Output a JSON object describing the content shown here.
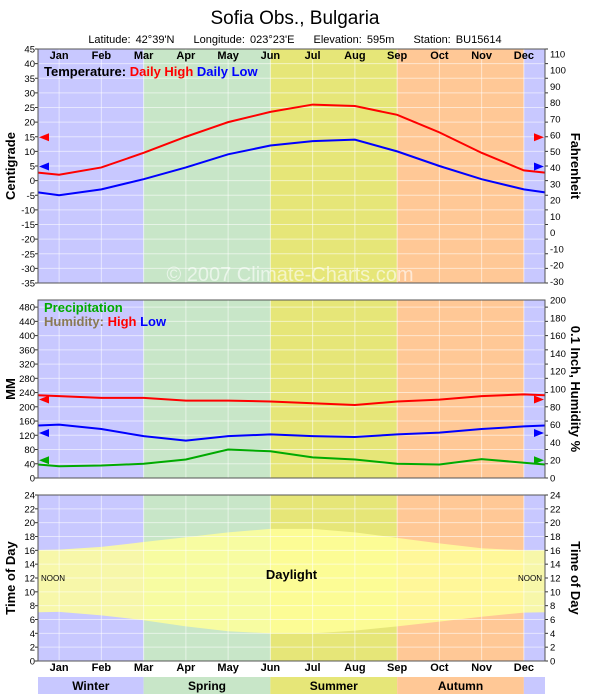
{
  "header": {
    "title": "Sofia Obs.,  Bulgaria",
    "latitude": "Latitude: 42°39'N",
    "longitude": "Longitude: 023°23'E",
    "elevation": "Elevation: 595m",
    "station": "Station: BU15614"
  },
  "watermark": "© 2007 Climate-Charts.com",
  "months": [
    "Jan",
    "Feb",
    "Mar",
    "Apr",
    "May",
    "Jun",
    "Jul",
    "Aug",
    "Sep",
    "Oct",
    "Nov",
    "Dec"
  ],
  "seasons": [
    "Winter",
    "Spring",
    "Summer",
    "Autumn"
  ],
  "colors": {
    "winter": "#c8c8ff",
    "spring": "#c8e6c8",
    "summer": "#e6e678",
    "autumn": "#ffc896",
    "daylight": "#ffff9a",
    "high": "#ff0000",
    "low": "#0000ff",
    "precip": "#00aa00"
  },
  "chart_data": [
    {
      "type": "line",
      "legend": {
        "prefix": "Temperature:",
        "high": "Daily High",
        "low": "Daily Low"
      },
      "ylabel": "Centigrade",
      "ylabel_right": "Fahrenheit",
      "ylim": [
        -35,
        45
      ],
      "ylim_right_f": [
        -31,
        113
      ],
      "y_ticks": [
        45,
        40,
        35,
        30,
        25,
        20,
        15,
        10,
        5,
        0,
        -5,
        -10,
        -15,
        -20,
        -25,
        -30,
        -35
      ],
      "y_ticks_right": [
        110,
        100,
        90,
        80,
        70,
        60,
        50,
        40,
        30,
        20,
        10,
        0,
        -10,
        -20,
        -30
      ],
      "categories": [
        "Jan",
        "Feb",
        "Mar",
        "Apr",
        "May",
        "Jun",
        "Jul",
        "Aug",
        "Sep",
        "Oct",
        "Nov",
        "Dec"
      ],
      "series": [
        {
          "name": "Daily High",
          "values": [
            2,
            4.5,
            9.5,
            15,
            20,
            23.5,
            26,
            25.5,
            22.5,
            16.5,
            9.5,
            3.5
          ]
        },
        {
          "name": "Daily Low",
          "values": [
            -5,
            -3,
            0.5,
            4.5,
            9,
            12,
            13.5,
            14,
            10,
            5,
            0.5,
            -3
          ]
        }
      ]
    },
    {
      "type": "line",
      "legend": {
        "precip": "Precipitation",
        "humidity_prefix": "Humidity:",
        "high": "High",
        "low": "Low"
      },
      "ylabel": "MM",
      "ylabel_right": "0.1 Inch, Humidity %",
      "ylim": [
        0,
        500
      ],
      "ylim_right": [
        0,
        200
      ],
      "y_ticks": [
        480,
        440,
        400,
        360,
        320,
        280,
        240,
        200,
        160,
        120,
        80,
        40,
        0
      ],
      "y_ticks_right": [
        200,
        180,
        160,
        140,
        120,
        100,
        80,
        60,
        40,
        20,
        0
      ],
      "categories": [
        "Jan",
        "Feb",
        "Mar",
        "Apr",
        "May",
        "Jun",
        "Jul",
        "Aug",
        "Sep",
        "Oct",
        "Nov",
        "Dec"
      ],
      "series": [
        {
          "name": "Precipitation",
          "values": [
            33,
            35,
            40,
            52,
            80,
            75,
            58,
            52,
            40,
            38,
            53,
            43
          ]
        },
        {
          "name": "High",
          "values": [
            92,
            90,
            90,
            87,
            87,
            86,
            84,
            82,
            86,
            88,
            92,
            94
          ]
        },
        {
          "name": "Low",
          "values": [
            60,
            55,
            47,
            42,
            47,
            49,
            47,
            46,
            49,
            51,
            55,
            58
          ]
        }
      ]
    },
    {
      "type": "area",
      "ylabel": "Time of Day",
      "ylabel_right": "Time of Day",
      "ylim": [
        0,
        24
      ],
      "y_ticks": [
        24,
        22,
        20,
        18,
        16,
        14,
        12,
        10,
        8,
        6,
        4,
        2,
        0
      ],
      "noon_label": "NOON",
      "daylight_label": "Daylight",
      "categories": [
        "Jan",
        "Feb",
        "Mar",
        "Apr",
        "May",
        "Jun",
        "Jul",
        "Aug",
        "Sep",
        "Oct",
        "Nov",
        "Dec"
      ],
      "sunset": [
        16.1,
        16.5,
        17.2,
        17.9,
        18.6,
        19.1,
        19.1,
        18.6,
        17.8,
        17.0,
        16.3,
        16.0
      ],
      "sunrise": [
        7.1,
        6.6,
        5.9,
        5.0,
        4.3,
        4.0,
        4.0,
        4.4,
        5.0,
        5.7,
        6.4,
        7.0
      ]
    }
  ]
}
